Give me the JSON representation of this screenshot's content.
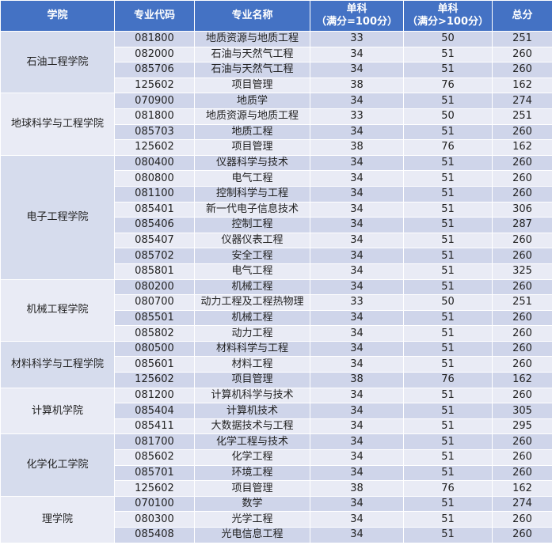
{
  "table": {
    "headers": {
      "college": "学院",
      "major_code": "专业代码",
      "major_name": "专业名称",
      "single_100_line1": "单科",
      "single_100_line2": "（满分=100分）",
      "single_over100_line1": "单科",
      "single_over100_line2": "（满分>100分）",
      "total": "总分"
    },
    "groups": [
      {
        "college": "石油工程学院",
        "rows": [
          {
            "code": "081800",
            "name": "地质资源与地质工程",
            "s100": "33",
            "sover": "50",
            "total": "251"
          },
          {
            "code": "082000",
            "name": "石油与天然气工程",
            "s100": "34",
            "sover": "51",
            "total": "260"
          },
          {
            "code": "085706",
            "name": "石油与天然气工程",
            "s100": "34",
            "sover": "51",
            "total": "260"
          },
          {
            "code": "125602",
            "name": "项目管理",
            "s100": "38",
            "sover": "76",
            "total": "162"
          }
        ]
      },
      {
        "college": "地球科学与工程学院",
        "rows": [
          {
            "code": "070900",
            "name": "地质学",
            "s100": "34",
            "sover": "51",
            "total": "274"
          },
          {
            "code": "081800",
            "name": "地质资源与地质工程",
            "s100": "33",
            "sover": "50",
            "total": "251"
          },
          {
            "code": "085703",
            "name": "地质工程",
            "s100": "34",
            "sover": "51",
            "total": "260"
          },
          {
            "code": "125602",
            "name": "项目管理",
            "s100": "38",
            "sover": "76",
            "total": "162"
          }
        ]
      },
      {
        "college": "电子工程学院",
        "rows": [
          {
            "code": "080400",
            "name": "仪器科学与技术",
            "s100": "34",
            "sover": "51",
            "total": "260"
          },
          {
            "code": "080800",
            "name": "电气工程",
            "s100": "34",
            "sover": "51",
            "total": "260"
          },
          {
            "code": "081100",
            "name": "控制科学与工程",
            "s100": "34",
            "sover": "51",
            "total": "260"
          },
          {
            "code": "085401",
            "name": "新一代电子信息技术",
            "s100": "34",
            "sover": "51",
            "total": "306"
          },
          {
            "code": "085406",
            "name": "控制工程",
            "s100": "34",
            "sover": "51",
            "total": "287"
          },
          {
            "code": "085407",
            "name": "仪器仪表工程",
            "s100": "34",
            "sover": "51",
            "total": "260"
          },
          {
            "code": "085702",
            "name": "安全工程",
            "s100": "34",
            "sover": "51",
            "total": "260"
          },
          {
            "code": "085801",
            "name": "电气工程",
            "s100": "34",
            "sover": "51",
            "total": "325"
          }
        ]
      },
      {
        "college": "机械工程学院",
        "rows": [
          {
            "code": "080200",
            "name": "机械工程",
            "s100": "34",
            "sover": "51",
            "total": "260"
          },
          {
            "code": "080700",
            "name": "动力工程及工程热物理",
            "s100": "33",
            "sover": "50",
            "total": "251"
          },
          {
            "code": "085501",
            "name": "机械工程",
            "s100": "34",
            "sover": "51",
            "total": "260"
          },
          {
            "code": "085802",
            "name": "动力工程",
            "s100": "34",
            "sover": "51",
            "total": "260"
          }
        ]
      },
      {
        "college": "材料科学与工程学院",
        "rows": [
          {
            "code": "080500",
            "name": "材料科学与工程",
            "s100": "34",
            "sover": "51",
            "total": "260"
          },
          {
            "code": "085601",
            "name": "材料工程",
            "s100": "34",
            "sover": "51",
            "total": "260"
          },
          {
            "code": "125602",
            "name": "项目管理",
            "s100": "38",
            "sover": "76",
            "total": "162"
          }
        ]
      },
      {
        "college": "计算机学院",
        "rows": [
          {
            "code": "081200",
            "name": "计算机科学与技术",
            "s100": "34",
            "sover": "51",
            "total": "260"
          },
          {
            "code": "085404",
            "name": "计算机技术",
            "s100": "34",
            "sover": "51",
            "total": "305"
          },
          {
            "code": "085411",
            "name": "大数据技术与工程",
            "s100": "34",
            "sover": "51",
            "total": "295"
          }
        ]
      },
      {
        "college": "化学化工学院",
        "rows": [
          {
            "code": "081700",
            "name": "化学工程与技术",
            "s100": "34",
            "sover": "51",
            "total": "260"
          },
          {
            "code": "085602",
            "name": "化学工程",
            "s100": "34",
            "sover": "51",
            "total": "260"
          },
          {
            "code": "085701",
            "name": "环境工程",
            "s100": "34",
            "sover": "51",
            "total": "260"
          },
          {
            "code": "125602",
            "name": "项目管理",
            "s100": "38",
            "sover": "76",
            "total": "162"
          }
        ]
      },
      {
        "college": "理学院",
        "rows": [
          {
            "code": "070100",
            "name": "数学",
            "s100": "34",
            "sover": "51",
            "total": "274"
          },
          {
            "code": "080300",
            "name": "光学工程",
            "s100": "34",
            "sover": "51",
            "total": "260"
          },
          {
            "code": "085408",
            "name": "光电信息工程",
            "s100": "34",
            "sover": "51",
            "total": "260"
          }
        ]
      }
    ]
  },
  "colors": {
    "header_bg": "#4472c4",
    "row_dark": "#cfd5ea",
    "row_light": "#e9ebf5"
  }
}
